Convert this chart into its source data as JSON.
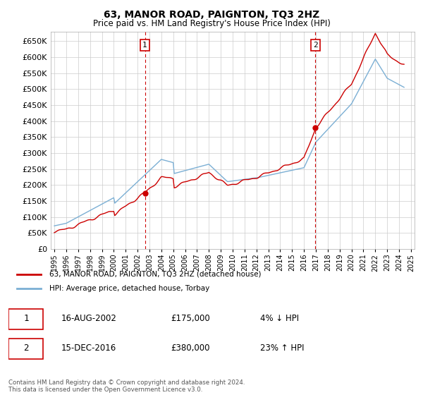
{
  "title": "63, MANOR ROAD, PAIGNTON, TQ3 2HZ",
  "subtitle": "Price paid vs. HM Land Registry's House Price Index (HPI)",
  "ytick_values": [
    0,
    50000,
    100000,
    150000,
    200000,
    250000,
    300000,
    350000,
    400000,
    450000,
    500000,
    550000,
    600000,
    650000
  ],
  "ylim": [
    0,
    680000
  ],
  "xlim_start": 1994.7,
  "xlim_end": 2025.3,
  "sale1_date": 2002.62,
  "sale1_price": 175000,
  "sale1_label": "16-AUG-2002",
  "sale1_pct": "4% ↓ HPI",
  "sale2_date": 2016.96,
  "sale2_price": 380000,
  "sale2_label": "15-DEC-2016",
  "sale2_pct": "23% ↑ HPI",
  "line_property_color": "#cc0000",
  "line_hpi_color": "#7bafd4",
  "marker_color": "#cc0000",
  "vline_color": "#cc0000",
  "grid_color": "#cccccc",
  "background_color": "#ffffff",
  "legend_label_property": "63, MANOR ROAD, PAIGNTON, TQ3 2HZ (detached house)",
  "legend_label_hpi": "HPI: Average price, detached house, Torbay",
  "footnote": "Contains HM Land Registry data © Crown copyright and database right 2024.\nThis data is licensed under the Open Government Licence v3.0."
}
